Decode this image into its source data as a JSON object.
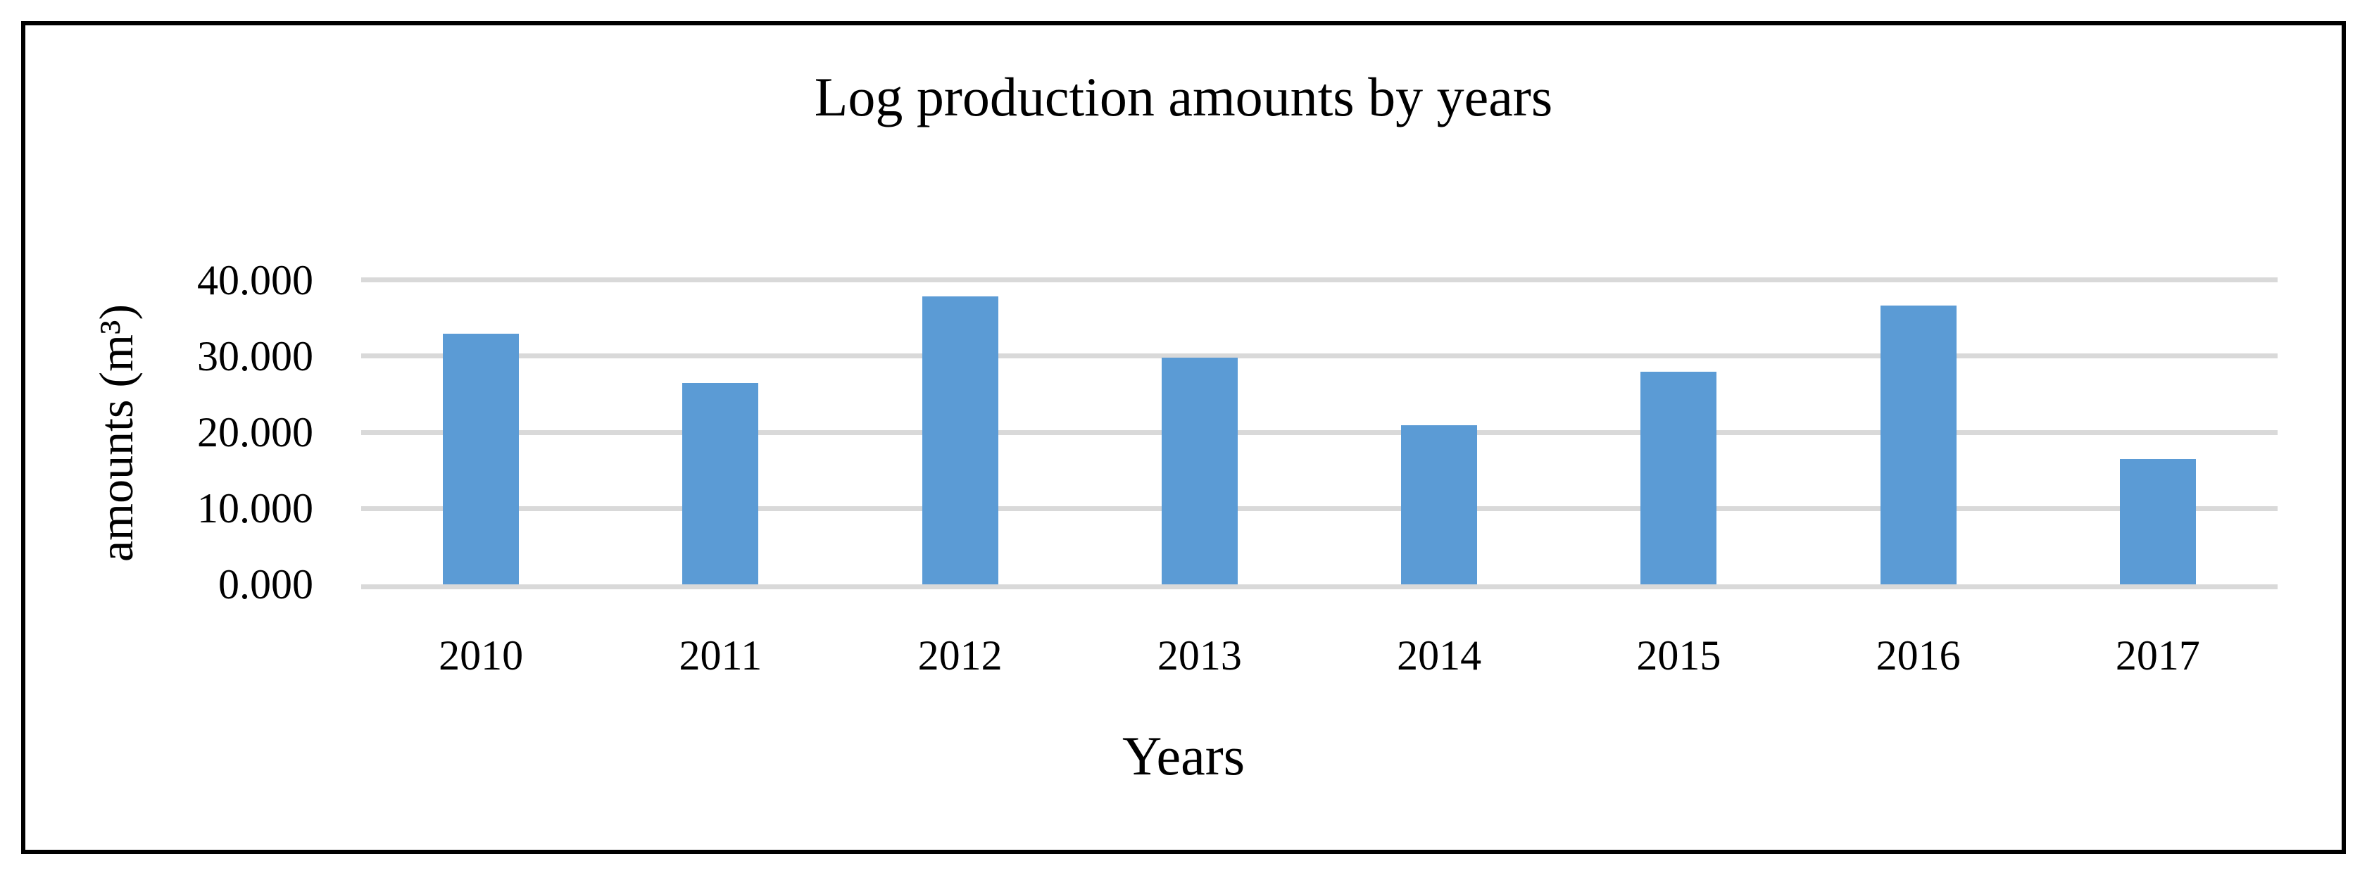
{
  "figure": {
    "colors": {
      "bar": "#5B9BD5",
      "gridline": "#D9D9D9",
      "border": "#000000",
      "text": "#000000",
      "background": "#FFFFFF"
    }
  },
  "chart_data": {
    "type": "bar",
    "title": "Log production amounts by years",
    "xlabel": "Years",
    "ylabel": "amounts (m³)",
    "categories": [
      "2010",
      "2011",
      "2012",
      "2013",
      "2014",
      "2015",
      "2016",
      "2017"
    ],
    "values": [
      33000,
      26500,
      37900,
      29800,
      20900,
      28000,
      36700,
      16500
    ],
    "ylim": [
      0,
      45000
    ],
    "ytick_interval": 10000,
    "yticks": [
      {
        "value": 40000,
        "label": "40.000"
      },
      {
        "value": 30000,
        "label": "30.000"
      },
      {
        "value": 20000,
        "label": "20.000"
      },
      {
        "value": 10000,
        "label": "10.000"
      },
      {
        "value": 0,
        "label": "0.000"
      }
    ],
    "grid": true,
    "legend": false,
    "number_format": "dot as thousands separator (40.000 = 40000 m³)"
  }
}
